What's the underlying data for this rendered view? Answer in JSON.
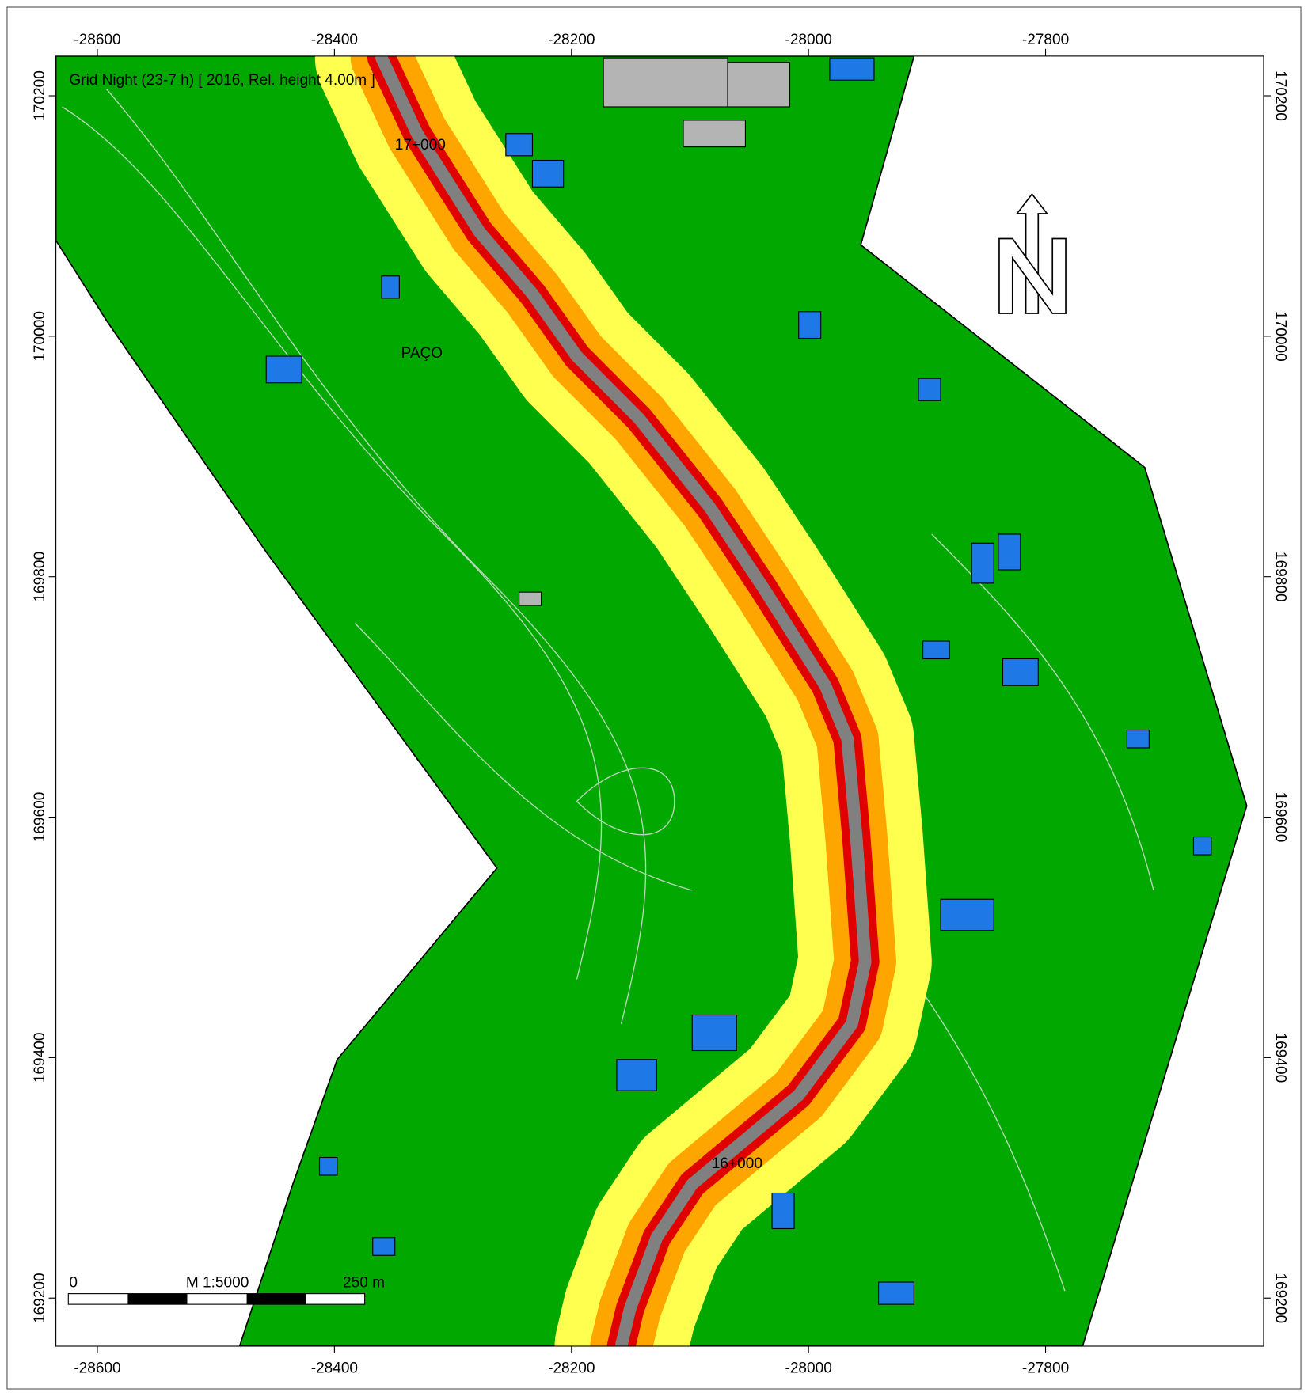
{
  "map": {
    "title": "Grid Night (23-7 h)  [ 2016, Rel. height  4.00m ]",
    "xlim": [
      -28635,
      -27616
    ],
    "ylim": [
      169160,
      170233
    ],
    "xticks": [
      -28600,
      -28400,
      -28200,
      -28000,
      -27800
    ],
    "yticks": [
      169200,
      169400,
      169600,
      169800,
      170000,
      170200
    ],
    "labels": [
      "17+000",
      "PAÇO",
      "16+000"
    ],
    "scalebar": {
      "start": "0",
      "scale": "M 1:5000",
      "end": "250 m"
    }
  }
}
